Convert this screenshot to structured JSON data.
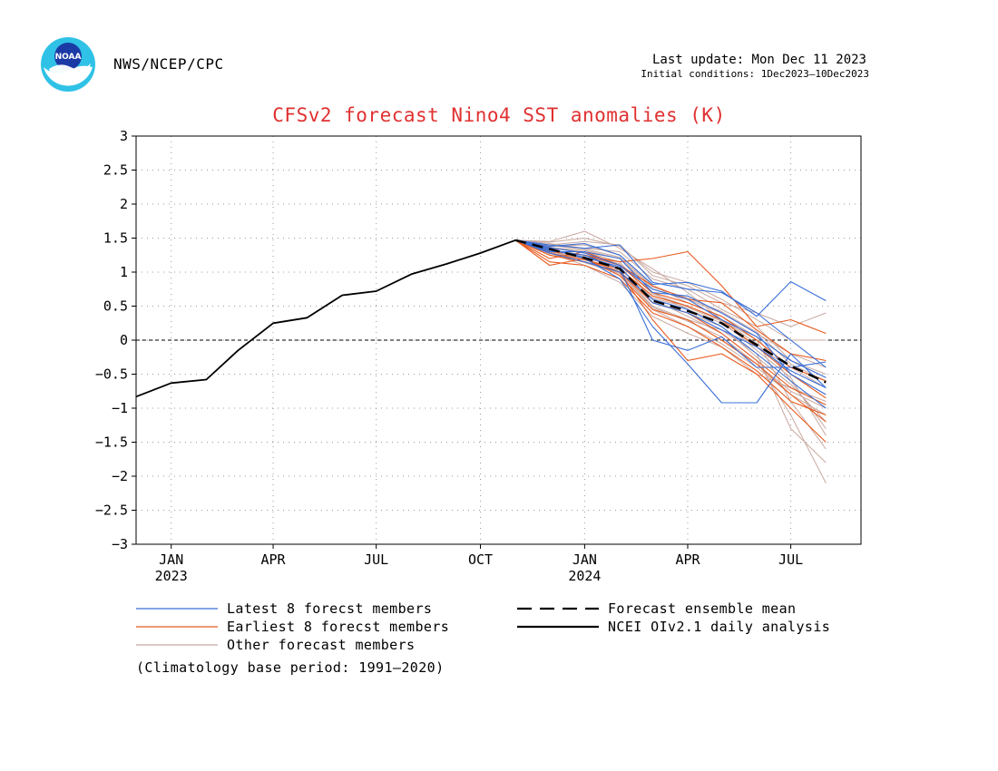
{
  "header": {
    "agency": "NWS/NCEP/CPC",
    "last_update": "Last update: Mon Dec 11 2023",
    "initial_conditions": "Initial conditions: 1Dec2023–10Dec2023",
    "logo_text": "NOAA"
  },
  "colors": {
    "latest": "#3a6fd8",
    "earliest": "#e85a1e",
    "other": "#c8a8a0",
    "mean": "#000000",
    "analysis": "#000000",
    "title": "#e03030"
  },
  "chart_data": {
    "type": "line",
    "title": "CFSv2 forecast Nino4 SST anomalies (K)",
    "ylim": [
      -3,
      3
    ],
    "yticks": [
      -3,
      -2.5,
      -2,
      -1.5,
      -1,
      -0.5,
      0,
      0.5,
      1,
      1.5,
      2,
      2.5,
      3
    ],
    "ytick_labels": [
      "−3",
      "−2.5",
      "−2",
      "−1.5",
      "−1",
      "−0.5",
      "0",
      "0.5",
      "1",
      "1.5",
      "2",
      "2.5",
      "3"
    ],
    "xlim": [
      "2022-12-01",
      "2024-09-01"
    ],
    "xticks": [
      {
        "date": "2023-01-01",
        "label": "JAN",
        "year": "2023"
      },
      {
        "date": "2023-04-01",
        "label": "APR",
        "year": ""
      },
      {
        "date": "2023-07-01",
        "label": "JUL",
        "year": ""
      },
      {
        "date": "2023-10-01",
        "label": "OCT",
        "year": ""
      },
      {
        "date": "2024-01-01",
        "label": "JAN",
        "year": "2024"
      },
      {
        "date": "2024-04-01",
        "label": "APR",
        "year": ""
      },
      {
        "date": "2024-07-01",
        "label": "JUL",
        "year": ""
      }
    ],
    "grid": true,
    "zero_line": true,
    "series": [
      {
        "name": "NCEI OIv2.1 daily analysis",
        "style": "solid-black",
        "x": [
          "2022-12-01",
          "2023-01-01",
          "2023-02-01",
          "2023-03-01",
          "2023-04-01",
          "2023-05-01",
          "2023-06-01",
          "2023-07-01",
          "2023-08-01",
          "2023-09-01",
          "2023-10-01",
          "2023-11-01"
        ],
        "values": [
          -0.83,
          -0.63,
          -0.58,
          -0.15,
          0.25,
          0.33,
          0.66,
          0.72,
          0.97,
          1.12,
          1.28,
          1.47
        ]
      },
      {
        "name": "Forecast ensemble mean",
        "style": "dashed-black",
        "x": [
          "2023-11-01",
          "2023-12-01",
          "2024-01-01",
          "2024-02-01",
          "2024-03-01",
          "2024-04-01",
          "2024-05-01",
          "2024-06-01",
          "2024-07-01",
          "2024-08-01"
        ],
        "values": [
          1.47,
          1.34,
          1.21,
          1.05,
          0.58,
          0.43,
          0.25,
          -0.07,
          -0.38,
          -0.62
        ]
      },
      {
        "name": "Latest 8 forecst members",
        "style": "thin-blue",
        "x": [
          "2023-11-01",
          "2023-12-01",
          "2024-01-01",
          "2024-02-01",
          "2024-03-01",
          "2024-04-01",
          "2024-05-01",
          "2024-06-01",
          "2024-07-01",
          "2024-08-01"
        ],
        "members": [
          [
            1.47,
            1.38,
            1.42,
            1.25,
            0.82,
            0.85,
            0.72,
            0.35,
            0.86,
            0.58
          ],
          [
            1.47,
            1.32,
            1.25,
            1.05,
            0.0,
            -0.15,
            0.05,
            -0.4,
            -0.4,
            -0.32
          ],
          [
            1.47,
            1.35,
            1.2,
            0.9,
            0.2,
            -0.35,
            -0.92,
            -0.92,
            -0.2,
            -0.7
          ],
          [
            1.47,
            1.3,
            1.3,
            1.2,
            0.7,
            0.65,
            0.4,
            0.1,
            -0.5,
            -0.8
          ],
          [
            1.47,
            1.4,
            1.35,
            1.4,
            0.85,
            0.75,
            0.7,
            0.4,
            0.0,
            -0.4
          ],
          [
            1.47,
            1.28,
            1.15,
            1.0,
            0.6,
            0.45,
            0.2,
            -0.2,
            -0.6,
            -1.0
          ],
          [
            1.47,
            1.36,
            1.28,
            1.1,
            0.75,
            0.6,
            0.3,
            0.05,
            -0.3,
            -0.55
          ],
          [
            1.47,
            1.33,
            1.22,
            1.08,
            0.55,
            0.4,
            0.15,
            -0.1,
            -0.45,
            -0.7
          ]
        ]
      },
      {
        "name": "Earliest 8 forecst members",
        "style": "thin-orange",
        "x": [
          "2023-11-01",
          "2023-12-01",
          "2024-01-01",
          "2024-02-01",
          "2024-03-01",
          "2024-04-01",
          "2024-05-01",
          "2024-06-01",
          "2024-07-01",
          "2024-08-01"
        ],
        "members": [
          [
            1.47,
            1.3,
            1.25,
            1.15,
            1.2,
            1.3,
            0.8,
            0.2,
            0.3,
            0.1
          ],
          [
            1.47,
            1.1,
            1.2,
            1.0,
            0.3,
            -0.3,
            -0.2,
            -0.5,
            -1.0,
            -1.5
          ],
          [
            1.47,
            1.25,
            1.15,
            1.0,
            0.55,
            0.4,
            0.1,
            -0.3,
            -0.7,
            -0.95
          ],
          [
            1.47,
            1.2,
            1.3,
            1.1,
            0.8,
            0.6,
            0.55,
            0.15,
            -0.2,
            -0.3
          ],
          [
            1.47,
            1.35,
            1.2,
            0.95,
            0.45,
            0.3,
            0.0,
            -0.35,
            -0.8,
            -1.2
          ],
          [
            1.47,
            1.28,
            1.18,
            1.05,
            0.65,
            0.5,
            0.3,
            -0.1,
            -0.5,
            -0.85
          ],
          [
            1.47,
            1.15,
            1.1,
            0.9,
            0.4,
            0.2,
            -0.1,
            -0.45,
            -0.9,
            -1.1
          ],
          [
            1.47,
            1.32,
            1.25,
            1.1,
            0.7,
            0.55,
            0.35,
            0.0,
            -0.4,
            -0.6
          ]
        ]
      },
      {
        "name": "Other forecast members",
        "style": "thin-tan",
        "x": [
          "2023-11-01",
          "2023-12-01",
          "2024-01-01",
          "2024-02-01",
          "2024-03-01",
          "2024-04-01",
          "2024-05-01",
          "2024-06-01",
          "2024-07-01",
          "2024-08-01"
        ],
        "members": [
          [
            1.47,
            1.45,
            1.6,
            1.35,
            1.05,
            0.7,
            0.3,
            0.0,
            -0.9,
            -1.6
          ],
          [
            1.47,
            1.4,
            1.45,
            1.4,
            0.95,
            0.8,
            0.55,
            0.4,
            0.2,
            0.4
          ],
          [
            1.47,
            1.35,
            1.3,
            1.15,
            0.6,
            0.35,
            0.1,
            -0.3,
            -1.1,
            -2.1
          ],
          [
            1.47,
            1.38,
            1.4,
            1.25,
            0.8,
            0.55,
            0.35,
            0.05,
            -0.6,
            -1.3
          ],
          [
            1.47,
            1.3,
            1.2,
            0.95,
            0.45,
            0.2,
            -0.05,
            -0.4,
            -0.8,
            -1.1
          ],
          [
            1.47,
            1.42,
            1.35,
            1.3,
            0.9,
            0.75,
            0.45,
            0.2,
            -0.3,
            -0.5
          ],
          [
            1.47,
            1.25,
            1.15,
            1.0,
            0.5,
            0.3,
            0.15,
            -0.2,
            -1.3,
            -1.8
          ],
          [
            1.47,
            1.33,
            1.25,
            1.1,
            0.7,
            0.45,
            0.25,
            -0.1,
            -0.4,
            -0.7
          ],
          [
            1.47,
            1.36,
            1.32,
            1.2,
            0.75,
            0.6,
            0.4,
            0.1,
            -0.2,
            -0.4
          ],
          [
            1.47,
            1.28,
            1.1,
            0.85,
            0.35,
            0.1,
            -0.1,
            -0.5,
            -0.7,
            -0.9
          ],
          [
            1.47,
            1.44,
            1.5,
            1.38,
            1.0,
            0.85,
            0.6,
            0.3,
            0.0,
            0.0
          ],
          [
            1.47,
            1.31,
            1.18,
            1.02,
            0.55,
            0.4,
            0.2,
            -0.25,
            -0.65,
            -1.2
          ],
          [
            1.47,
            1.37,
            1.28,
            1.12,
            0.68,
            0.5,
            0.3,
            -0.05,
            -0.5,
            -0.8
          ],
          [
            1.47,
            1.27,
            1.22,
            1.05,
            0.62,
            0.48,
            0.28,
            -0.15,
            -0.55,
            -1.4
          ],
          [
            1.47,
            1.39,
            1.34,
            1.22,
            0.78,
            0.62,
            0.42,
            0.12,
            -0.35,
            -0.6
          ],
          [
            1.47,
            1.29,
            1.14,
            0.98,
            0.48,
            0.28,
            0.05,
            -0.35,
            -0.75,
            -1.0
          ]
        ]
      }
    ],
    "legend": {
      "placement": "bottom",
      "entries": [
        {
          "label": "Latest 8 forecst members",
          "style": "thin-blue"
        },
        {
          "label": "Earliest 8 forecst members",
          "style": "thin-orange"
        },
        {
          "label": "Other forecast members",
          "style": "thin-tan"
        },
        {
          "label": "Forecast ensemble mean",
          "style": "dashed-black"
        },
        {
          "label": "NCEI OIv2.1 daily analysis",
          "style": "solid-black"
        }
      ],
      "note": "(Climatology base period: 1991—2020)"
    }
  }
}
